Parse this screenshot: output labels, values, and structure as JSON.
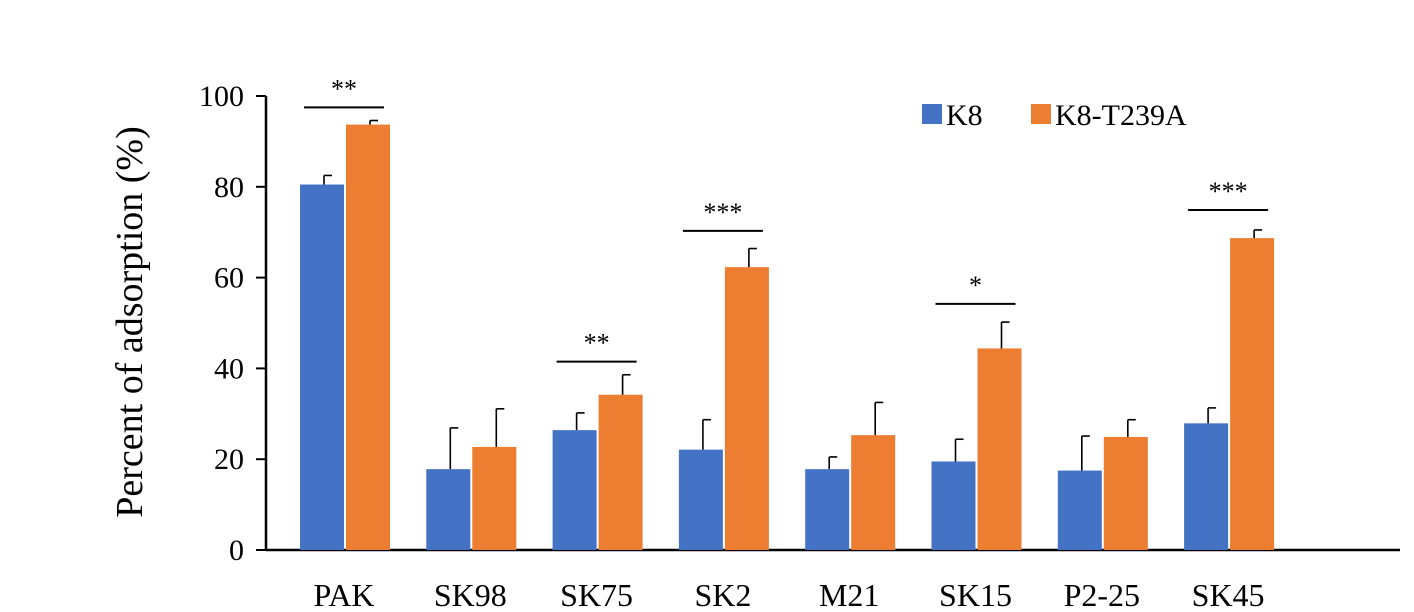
{
  "chart_data": {
    "type": "bar",
    "title": "",
    "xlabel": "",
    "ylabel": "Percent of adsorption  (%)",
    "ylim": [
      0,
      100
    ],
    "yticks": [
      "0",
      "20",
      "40",
      "60",
      "80",
      "100"
    ],
    "grid": false,
    "legend_position": "top-right",
    "categories": [
      "PAK",
      "SK98",
      "SK75",
      "SK2",
      "M21",
      "SK15",
      "P2-25",
      "SK45"
    ],
    "series": [
      {
        "name": "K8",
        "color": "#4472C4",
        "values": [
          80.5,
          17.8,
          26.4,
          22.1,
          17.8,
          19.5,
          17.5,
          27.9
        ],
        "errors": [
          2.0,
          9.1,
          3.8,
          6.6,
          2.7,
          4.9,
          7.6,
          3.4
        ]
      },
      {
        "name": "K8-T239A",
        "color": "#ED7D31",
        "values": [
          93.7,
          22.7,
          34.2,
          62.3,
          25.3,
          44.4,
          24.9,
          68.7
        ],
        "errors": [
          0.9,
          8.4,
          4.4,
          4.1,
          7.2,
          5.8,
          3.8,
          1.8
        ]
      }
    ],
    "significance": [
      {
        "category": "PAK",
        "label": "**",
        "level": 97.5
      },
      {
        "category": "SK75",
        "label": "**",
        "level": 41.5
      },
      {
        "category": "SK2",
        "label": "***",
        "level": 70.3
      },
      {
        "category": "SK15",
        "label": "*",
        "level": 54.2
      },
      {
        "category": "SK45",
        "label": "***",
        "level": 74.9
      }
    ]
  }
}
